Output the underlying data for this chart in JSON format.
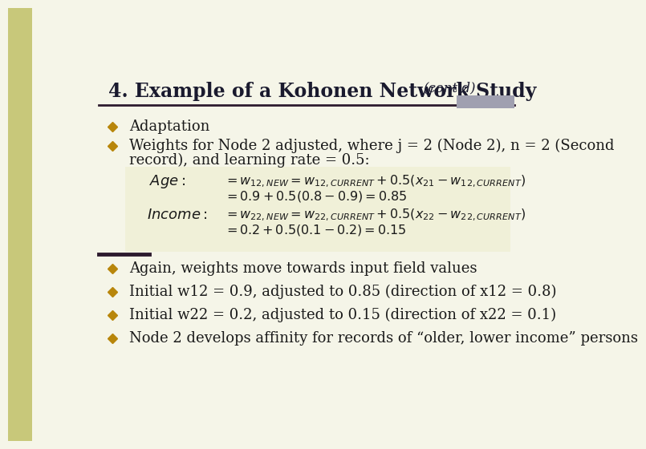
{
  "title_main": "4. Example of a Kohonen Network Study",
  "title_italic": "(cont’d)",
  "bg_color": "#f5f5e8",
  "left_bar_color": "#c8c87a",
  "title_color": "#1a1a2e",
  "bullet_color": "#b8860b",
  "divider_color": "#2d1b2e",
  "text_color": "#1a1a1a",
  "gray_rect_color": "#a0a0b0",
  "bullet1": "Adaptation",
  "bullet2a": "Weights for Node 2 adjusted, where j = 2 (Node 2), n = 2 (Second",
  "bullet2b": "record), and learning rate = 0.5:",
  "bullet3": "Again, weights move towards input field values",
  "bullet4": "Initial w12 = 0.9, adjusted to 0.85 (direction of x12 = 0.8)",
  "bullet5": "Initial w22 = 0.2, adjusted to 0.15 (direction of x22 = 0.1)",
  "bullet6": "Node 2 develops affinity for records of “older, lower income” persons"
}
